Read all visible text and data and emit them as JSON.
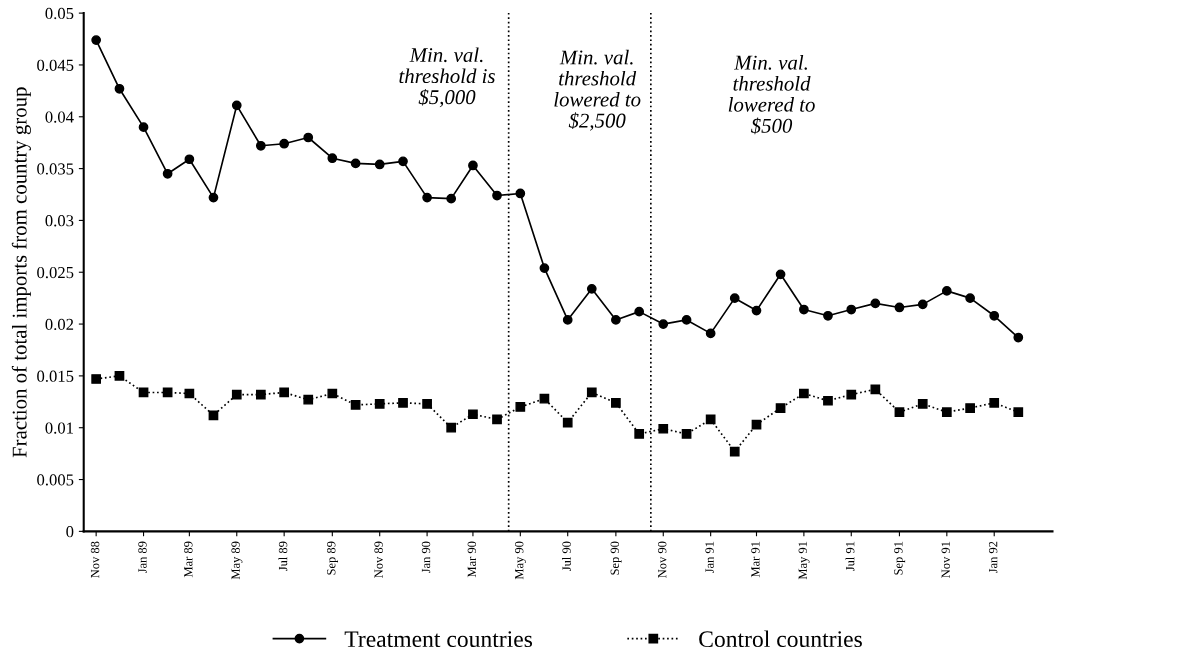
{
  "chart_data": {
    "type": "line",
    "ylabel": "Fraction of total imports from country group",
    "x": [
      "1988-11",
      "1988-12",
      "1989-01",
      "1989-02",
      "1989-03",
      "1989-04",
      "1989-05",
      "1989-06",
      "1989-07",
      "1989-08",
      "1989-09",
      "1989-10",
      "1989-11",
      "1989-12",
      "1990-01",
      "1990-02",
      "1990-03",
      "1990-04",
      "1990-05",
      "1990-06",
      "1990-07",
      "1990-08",
      "1990-09",
      "1990-10",
      "1990-11",
      "1990-12",
      "1991-01",
      "1991-02",
      "1991-03",
      "1991-04",
      "1991-05",
      "1991-06",
      "1991-07",
      "1991-08",
      "1991-09",
      "1991-10",
      "1991-11",
      "1991-12",
      "1992-01",
      "1992-02"
    ],
    "series": [
      {
        "name": "Treatment countries",
        "color": "#000000",
        "marker": "circle",
        "line_style": "solid",
        "values": [
          0.0474,
          0.0427,
          0.039,
          0.0345,
          0.0359,
          0.0322,
          0.0411,
          0.0372,
          0.0374,
          0.038,
          0.036,
          0.0355,
          0.0354,
          0.0357,
          0.0322,
          0.0321,
          0.0353,
          0.0324,
          0.0326,
          0.0254,
          0.0204,
          0.0234,
          0.0204,
          0.0212,
          0.02,
          0.0204,
          0.0191,
          0.0225,
          0.0213,
          0.0248,
          0.0214,
          0.0208,
          0.0214,
          0.022,
          0.0216,
          0.0219,
          0.0232,
          0.0225,
          0.0208,
          0.0187
        ]
      },
      {
        "name": "Control countries",
        "color": "#000000",
        "marker": "square",
        "line_style": "dotted",
        "values": [
          0.0147,
          0.015,
          0.0134,
          0.0134,
          0.0133,
          0.0112,
          0.0132,
          0.0132,
          0.0134,
          0.0127,
          0.0133,
          0.0122,
          0.0123,
          0.0124,
          0.0123,
          0.01,
          0.0113,
          0.0108,
          0.012,
          0.0128,
          0.0105,
          0.0134,
          0.0124,
          0.0094,
          0.0099,
          0.0094,
          0.0108,
          0.0077,
          0.0103,
          0.0119,
          0.0133,
          0.0126,
          0.0132,
          0.0137,
          0.0115,
          0.0123,
          0.0115,
          0.0119,
          0.0124,
          0.0115
        ]
      }
    ],
    "xlim": [
      "1988-10-16",
      "1992-03-16"
    ],
    "xticks": [
      {
        "value": "1988-11",
        "label": "Nov 88"
      },
      {
        "value": "1989-01",
        "label": "Jan 89"
      },
      {
        "value": "1989-03",
        "label": "Mar 89"
      },
      {
        "value": "1989-05",
        "label": "May 89"
      },
      {
        "value": "1989-07",
        "label": "Jul 89"
      },
      {
        "value": "1989-09",
        "label": "Sep 89"
      },
      {
        "value": "1989-11",
        "label": "Nov 89"
      },
      {
        "value": "1990-01",
        "label": "Jan 90"
      },
      {
        "value": "1990-03",
        "label": "Mar 90"
      },
      {
        "value": "1990-05",
        "label": "May 90"
      },
      {
        "value": "1990-07",
        "label": "Jul 90"
      },
      {
        "value": "1990-09",
        "label": "Sep 90"
      },
      {
        "value": "1990-11",
        "label": "Nov 90"
      },
      {
        "value": "1991-01",
        "label": "Jan 91"
      },
      {
        "value": "1991-03",
        "label": "Mar 91"
      },
      {
        "value": "1991-05",
        "label": "May 91"
      },
      {
        "value": "1991-07",
        "label": "Jul 91"
      },
      {
        "value": "1991-09",
        "label": "Sep 91"
      },
      {
        "value": "1991-11",
        "label": "Nov 91"
      },
      {
        "value": "1992-01",
        "label": "Jan 92"
      }
    ],
    "ylim": [
      0,
      0.05
    ],
    "yticks": [
      0,
      0.005,
      0.01,
      0.015,
      0.02,
      0.025,
      0.03,
      0.035,
      0.04,
      0.045,
      0.05
    ],
    "ref_lines": [
      {
        "axis": "x",
        "value": "1990-04-16",
        "color": "#000000",
        "line_style": "dotted"
      },
      {
        "axis": "x",
        "value": "1990-10-16",
        "color": "#000000",
        "line_style": "dotted"
      }
    ],
    "annotations": [
      "Min. val.\nthreshold is\n$5,000",
      "Min. val.\nthreshold\nlowered to\n$2,500",
      "Min. val.\nthreshold\nlowered to\n$500"
    ],
    "grid": false,
    "legend": "bottom"
  }
}
